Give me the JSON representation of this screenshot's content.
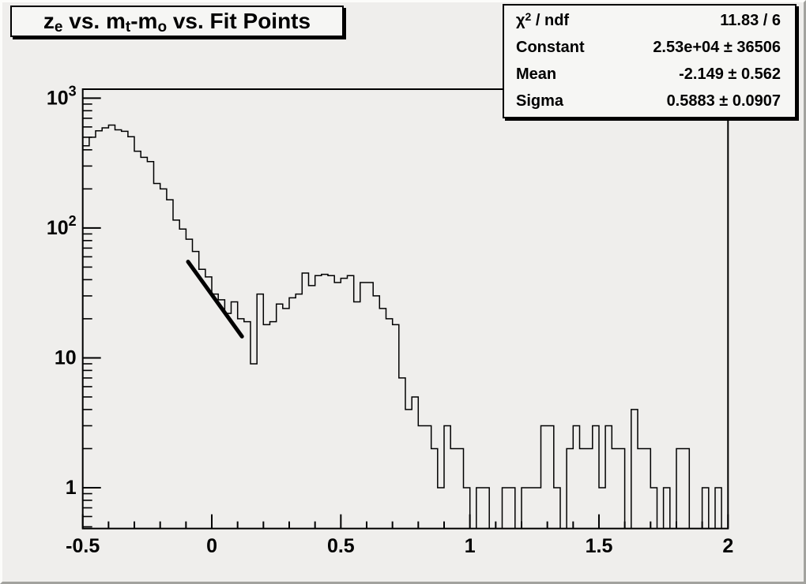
{
  "canvas": {
    "background": "#efeeec",
    "bevel_light": "#fcfcfa",
    "bevel_dark": "#a2a29e",
    "pave_fill": "#f6f6f4",
    "shadow_color": "#000000"
  },
  "title_box": {
    "segments": [
      {
        "text": "z",
        "sub": "e"
      },
      {
        "text": " vs. m",
        "sub": "t"
      },
      {
        "text": "-m",
        "sub": "o"
      },
      {
        "text": " vs. Fit Points",
        "sub": ""
      }
    ]
  },
  "stats_box": {
    "rows": [
      {
        "label": "χ",
        "label_sup": "2",
        "label_rest": " / ndf",
        "value": "11.83 / 6"
      },
      {
        "label": "Constant",
        "label_sup": "",
        "label_rest": "",
        "value": "2.53e+04 ± 36506"
      },
      {
        "label": "Mean",
        "label_sup": "",
        "label_rest": "",
        "value": "-2.149 ± 0.562"
      },
      {
        "label": "Sigma",
        "label_sup": "",
        "label_rest": "",
        "value": "0.5883 ± 0.0907"
      }
    ]
  },
  "chart_data": {
    "type": "bar",
    "title": "z_e vs. m_t-m_o vs. Fit Points",
    "xlabel": "",
    "ylabel": "",
    "yscale": "log",
    "grid": false,
    "legend": false,
    "xlim": [
      -0.5,
      2
    ],
    "ylim": [
      0.485,
      1172
    ],
    "x_start": -0.5,
    "bin_width": 0.025,
    "values": [
      430,
      500,
      560,
      590,
      620,
      570,
      555,
      505,
      390,
      350,
      325,
      220,
      200,
      165,
      115,
      98,
      82,
      66,
      48,
      42,
      31,
      28,
      22,
      27,
      20,
      19,
      9,
      31,
      18,
      19,
      26,
      24,
      29,
      31,
      45,
      36,
      43,
      44,
      43,
      38,
      41,
      43,
      27,
      38,
      38,
      30,
      24,
      20,
      18,
      7,
      4,
      5,
      3,
      3,
      2,
      1,
      3,
      2,
      2,
      1,
      0,
      1,
      1,
      0,
      0,
      1,
      1,
      0,
      1,
      1,
      1,
      3,
      3,
      1,
      0,
      2,
      3,
      2,
      2,
      3,
      1,
      3,
      2,
      2,
      0,
      4,
      2,
      2,
      1,
      0,
      1,
      0,
      2,
      2,
      0,
      0,
      1,
      0,
      1,
      0
    ],
    "x_major_ticks": [
      -0.5,
      0,
      0.5,
      1,
      1.5,
      2
    ],
    "x_major_labels": [
      "-0.5",
      "0",
      "0.5",
      "1",
      "1.5",
      "2"
    ],
    "x_minor_step": 0.1,
    "y_major_ticks": [
      {
        "value": 1,
        "base": "1",
        "sup": ""
      },
      {
        "value": 10,
        "base": "10",
        "sup": ""
      },
      {
        "value": 100,
        "base": "10",
        "sup": "2"
      },
      {
        "value": 1000,
        "base": "10",
        "sup": "3"
      }
    ],
    "line_color": "#000000",
    "fit_line": {
      "x1": -0.092,
      "v1": 55,
      "x2": 0.117,
      "v2": 14.6,
      "color": "#000000",
      "width": 5
    }
  }
}
